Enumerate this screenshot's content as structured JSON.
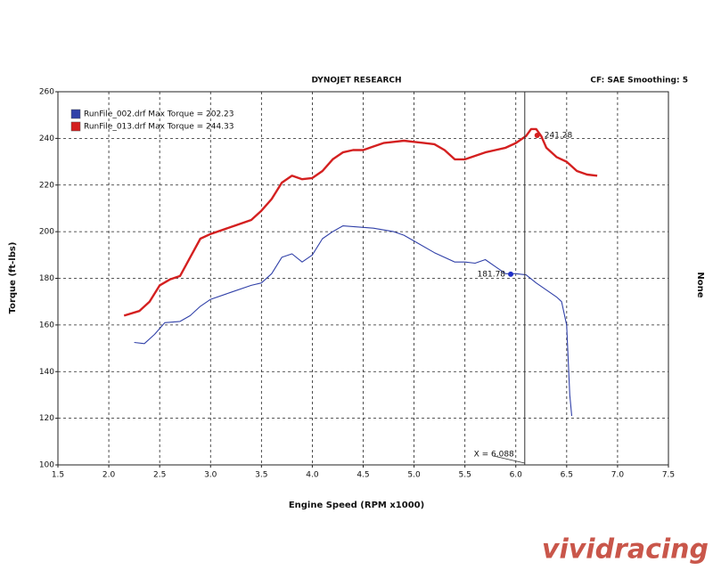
{
  "chart_data": {
    "type": "line",
    "header_left": "DYNOJET RESEARCH",
    "header_right": "CF: SAE  Smoothing: 5",
    "xlabel": "Engine Speed (RPM x1000)",
    "ylabel": "Torque (ft-lbs)",
    "y2label": "None",
    "watermark": "vividracing",
    "xlim": [
      1.5,
      7.5
    ],
    "xticks": [
      1.5,
      {
        "value": 2,
        "label": "2.0"
      },
      2.5,
      {
        "value": 3,
        "label": "3.0"
      },
      3.5,
      {
        "value": 4,
        "label": "4.0"
      },
      4.5,
      {
        "value": 5,
        "label": "5.0"
      },
      5.5,
      {
        "value": 6,
        "label": "6.0"
      },
      6.5,
      {
        "value": 7,
        "label": "7.0"
      },
      7.5
    ],
    "ylim": [
      100,
      260
    ],
    "yticks": [
      100,
      120,
      140,
      160,
      180,
      200,
      220,
      240,
      260
    ],
    "grid": true,
    "legend": "upper left",
    "series": [
      {
        "name": "RunFile_002.drf Max Torque = 202.23",
        "color": "#3040a8",
        "x": [
          2.25,
          2.35,
          2.45,
          2.55,
          2.7,
          2.8,
          2.9,
          3.0,
          3.2,
          3.4,
          3.5,
          3.6,
          3.7,
          3.8,
          3.9,
          4.0,
          4.1,
          4.2,
          4.3,
          4.4,
          4.6,
          4.8,
          4.9,
          5.0,
          5.2,
          5.4,
          5.5,
          5.6,
          5.7,
          5.8,
          5.9,
          6.0,
          6.1,
          6.2,
          6.3,
          6.4,
          6.45,
          6.5,
          6.53,
          6.55
        ],
        "values": [
          152.5,
          152,
          156,
          161,
          161.5,
          164,
          168,
          171,
          174,
          177,
          178,
          182,
          189,
          190.5,
          187,
          190,
          197,
          200,
          202.5,
          202.2,
          201.5,
          200,
          198.5,
          196,
          191,
          187,
          187,
          186.5,
          188,
          185,
          182,
          182,
          181.5,
          178,
          175,
          172,
          170,
          160,
          130,
          121
        ]
      },
      {
        "name": "RunFile_013.drf Max Torque = 244.33",
        "color": "#d42020",
        "x": [
          2.15,
          2.3,
          2.4,
          2.5,
          2.6,
          2.7,
          2.8,
          2.9,
          3.0,
          3.2,
          3.4,
          3.5,
          3.6,
          3.7,
          3.8,
          3.9,
          4.0,
          4.1,
          4.2,
          4.3,
          4.4,
          4.5,
          4.6,
          4.7,
          4.8,
          4.9,
          5.0,
          5.1,
          5.2,
          5.3,
          5.4,
          5.5,
          5.6,
          5.7,
          5.8,
          5.9,
          6.0,
          6.1,
          6.15,
          6.2,
          6.25,
          6.3,
          6.4,
          6.5,
          6.6,
          6.7,
          6.8
        ],
        "values": [
          164,
          166,
          170,
          177,
          179.5,
          181,
          189,
          197,
          199,
          202,
          205,
          209,
          214,
          221,
          224,
          222.5,
          223,
          226,
          231,
          234,
          235,
          235,
          236.5,
          238,
          238.5,
          239,
          238.5,
          238,
          237.5,
          235,
          231,
          231,
          232.5,
          234,
          235,
          236,
          238,
          241,
          244,
          244,
          241,
          236,
          232,
          230,
          226,
          224.5,
          224
        ]
      }
    ],
    "markers": [
      {
        "x": 6.21,
        "y": 241.28,
        "color": "#d42020"
      },
      {
        "x": 5.95,
        "y": 181.78,
        "color": "#2030c8"
      }
    ],
    "cursor": {
      "x": 6.088,
      "label": "X = 6.088"
    }
  }
}
